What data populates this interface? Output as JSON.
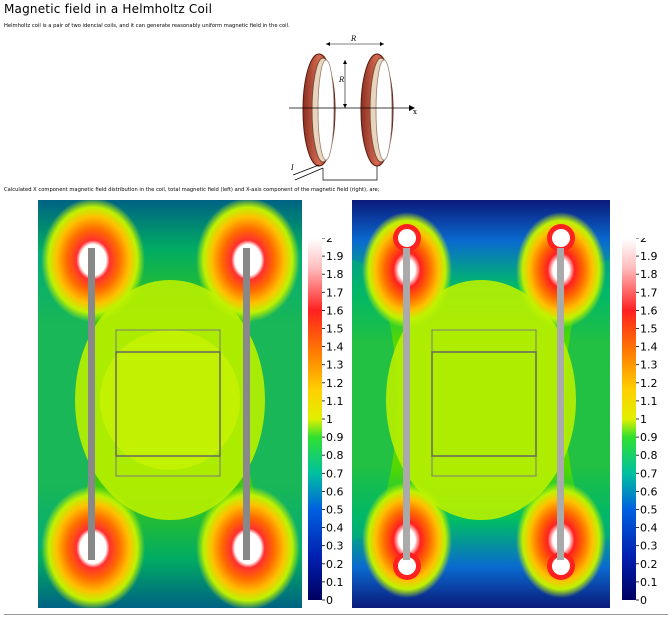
{
  "page": {
    "title": "Magnetic field in a Helmholtz Coil",
    "intro": "Helmholtz coil is a pair of two idencial coils, and it can generate reasonably uniform magnetic field in the coil.",
    "description": "Calculated X component magnetic field distribution in the coil, total magnetic field (left) and X-axis component of the magnetic field (right), are;"
  },
  "figure": {
    "r_label": "R",
    "x_label": "x",
    "current_label": "I"
  },
  "colorbar": {
    "ticks": [
      "2",
      "1.9",
      "1.8",
      "1.7",
      "1.6",
      "1.5",
      "1.4",
      "1.3",
      "1.2",
      "1.1",
      "1",
      "0.9",
      "0.8",
      "0.7",
      "0.6",
      "0.5",
      "0.4",
      "0.3",
      "0.2",
      "0.1",
      "0"
    ],
    "max": 2,
    "min": 0
  },
  "colors": {
    "coil_copper": "#c0503a",
    "coil_inner": "#d8c3a5",
    "conductor": "#888888"
  }
}
